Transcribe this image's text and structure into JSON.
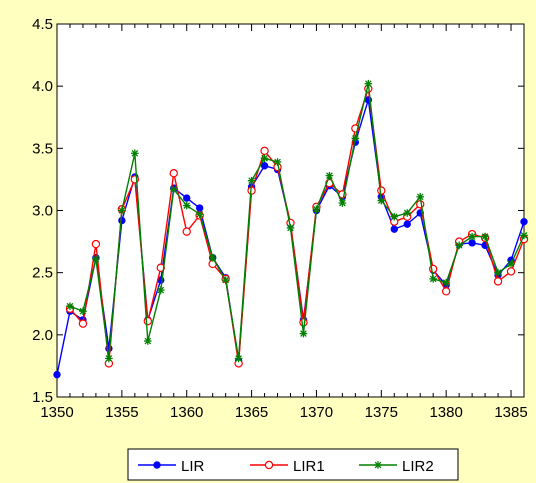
{
  "chart_data": {
    "type": "line",
    "title": "",
    "xlabel": "",
    "ylabel": "",
    "xlim": [
      1350,
      1386
    ],
    "ylim": [
      1.5,
      4.5
    ],
    "x_ticks": [
      1350,
      1355,
      1360,
      1365,
      1370,
      1375,
      1380,
      1385
    ],
    "x_tick_labels": [
      "1350",
      "1355",
      "1360",
      "1365",
      "1370",
      "1375",
      "1380",
      "1385"
    ],
    "y_ticks": [
      1.5,
      2.0,
      2.5,
      3.0,
      3.5,
      4.0,
      4.5
    ],
    "y_tick_labels": [
      "1.5",
      "2.0",
      "2.5",
      "3.0",
      "3.5",
      "4.0",
      "4.5"
    ],
    "grid": false,
    "legend_position": "bottom-center",
    "x": [
      1350,
      1351,
      1352,
      1353,
      1354,
      1355,
      1356,
      1357,
      1358,
      1359,
      1360,
      1361,
      1362,
      1363,
      1364,
      1365,
      1366,
      1367,
      1368,
      1369,
      1370,
      1371,
      1372,
      1373,
      1374,
      1375,
      1376,
      1377,
      1378,
      1379,
      1380,
      1381,
      1382,
      1383,
      1384,
      1385,
      1386
    ],
    "series": [
      {
        "name": "LIR",
        "color": "#0000ff",
        "marker": "dot",
        "values": [
          1.68,
          2.19,
          2.12,
          2.62,
          1.89,
          2.92,
          3.27,
          2.12,
          2.44,
          3.18,
          3.1,
          3.02,
          2.62,
          2.46,
          1.79,
          3.19,
          3.36,
          3.33,
          2.89,
          2.12,
          3.0,
          3.2,
          3.11,
          3.55,
          3.89,
          3.11,
          2.85,
          2.89,
          2.98,
          2.52,
          2.4,
          2.73,
          2.74,
          2.72,
          2.48,
          2.6,
          2.91
        ]
      },
      {
        "name": "LIR1",
        "color": "#ff0000",
        "marker": "open-circle",
        "values": [
          null,
          2.21,
          2.09,
          2.73,
          1.77,
          3.01,
          3.25,
          2.11,
          2.54,
          3.3,
          2.83,
          2.96,
          2.57,
          2.45,
          1.77,
          3.16,
          3.48,
          3.35,
          2.9,
          2.1,
          3.03,
          3.22,
          3.13,
          3.66,
          3.98,
          3.16,
          2.91,
          2.95,
          3.05,
          2.53,
          2.35,
          2.75,
          2.81,
          2.78,
          2.43,
          2.51,
          2.77
        ]
      },
      {
        "name": "LIR2",
        "color": "#008000",
        "marker": "asterisk",
        "values": [
          null,
          2.23,
          2.19,
          2.61,
          1.81,
          3.0,
          3.46,
          1.95,
          2.36,
          3.17,
          3.04,
          2.97,
          2.62,
          2.44,
          1.81,
          3.24,
          3.42,
          3.39,
          2.86,
          2.01,
          3.01,
          3.28,
          3.06,
          3.58,
          4.02,
          3.08,
          2.95,
          2.98,
          3.11,
          2.45,
          2.42,
          2.72,
          2.79,
          2.79,
          2.5,
          2.57,
          2.8
        ]
      }
    ]
  }
}
